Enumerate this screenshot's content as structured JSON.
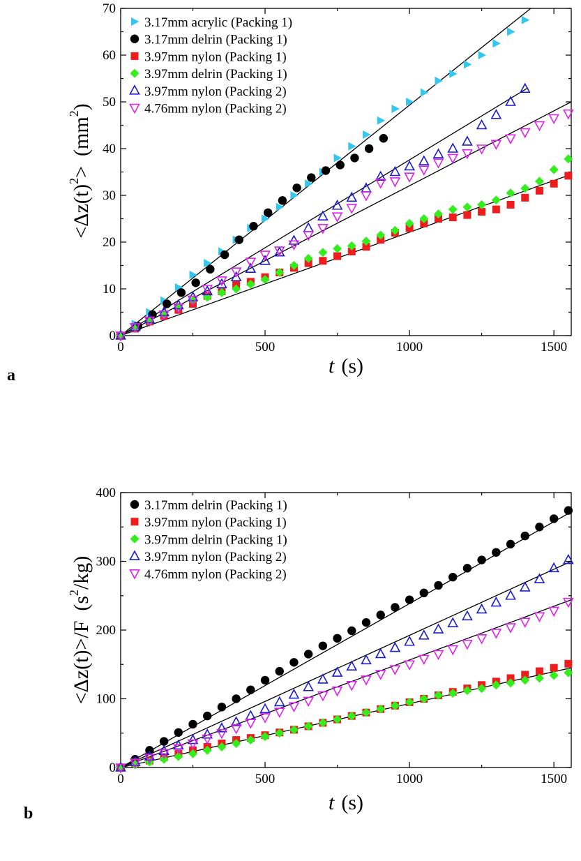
{
  "chart_data": [
    {
      "type": "scatter",
      "panel_label": "a",
      "title": "",
      "xlabel": {
        "main": "t",
        "unit": "(s)"
      },
      "ylabel": {
        "part1": "<Δz(t)",
        "sup": "2",
        "part2": ">",
        "unit": "(mm",
        "unitsup": "2",
        "unitclose": ")"
      },
      "xlim": [
        0,
        1560
      ],
      "ylim": [
        0,
        70
      ],
      "xticks": [
        0,
        500,
        1000,
        1500
      ],
      "yticks": [
        0,
        10,
        20,
        30,
        40,
        50,
        60,
        70
      ],
      "grid": false,
      "legend_position": "top-left",
      "series": [
        {
          "name": "3.17mm acrylic (Packing 1)",
          "marker": "triangle-right",
          "filled": true,
          "color": "#33c6ee",
          "x": [
            0,
            50,
            100,
            150,
            200,
            250,
            300,
            350,
            400,
            450,
            500,
            550,
            600,
            650,
            700,
            750,
            800,
            850,
            900,
            950,
            1000,
            1050,
            1100,
            1150,
            1200,
            1250,
            1300,
            1350,
            1400
          ],
          "y": [
            0,
            2.5,
            5,
            7.5,
            10.3,
            13,
            15.5,
            18,
            20.5,
            23,
            25,
            27.5,
            30,
            32.5,
            35,
            38,
            40.5,
            43,
            46,
            48.5,
            50,
            52,
            54.5,
            56,
            58,
            60,
            62.5,
            65,
            67.5
          ],
          "fit": [
            [
              0,
              0
            ],
            [
              1420,
              70
            ]
          ]
        },
        {
          "name": "3.17mm delrin (Packing 1)",
          "marker": "circle",
          "filled": true,
          "color": "#000000",
          "x": [
            0,
            60,
            110,
            160,
            210,
            260,
            310,
            360,
            410,
            460,
            510,
            560,
            610,
            660,
            710,
            760,
            810,
            860,
            910
          ],
          "y": [
            0,
            2,
            4.5,
            6.8,
            9.2,
            11.3,
            14.2,
            17.3,
            20.5,
            23.4,
            26.3,
            28.9,
            31.6,
            33.8,
            35.3,
            36.5,
            38,
            40,
            42.2
          ],
          "fit": null
        },
        {
          "name": "3.97mm nylon (Packing 1)",
          "marker": "square",
          "filled": true,
          "color": "#ee1c1c",
          "x": [
            0,
            50,
            100,
            150,
            200,
            250,
            300,
            350,
            400,
            450,
            500,
            550,
            600,
            650,
            700,
            750,
            800,
            850,
            900,
            950,
            1000,
            1050,
            1100,
            1150,
            1200,
            1250,
            1300,
            1350,
            1400,
            1450,
            1500,
            1550
          ],
          "y": [
            0,
            1.5,
            3,
            4.2,
            5.5,
            6.8,
            8.5,
            9.5,
            11,
            11.5,
            12.5,
            13.5,
            14.5,
            15.5,
            16,
            17,
            18,
            19,
            20.5,
            22,
            23,
            24,
            25,
            25.3,
            25.8,
            26.5,
            27,
            28,
            29.5,
            31,
            32.5,
            34.2
          ],
          "fit": null
        },
        {
          "name": "3.97mm delrin (Packing 1)",
          "marker": "diamond",
          "filled": true,
          "color": "#33ee1c",
          "x": [
            0,
            50,
            100,
            150,
            200,
            250,
            300,
            350,
            400,
            450,
            500,
            550,
            600,
            650,
            700,
            750,
            800,
            850,
            900,
            950,
            1000,
            1050,
            1100,
            1150,
            1200,
            1250,
            1300,
            1350,
            1400,
            1450,
            1500,
            1550
          ],
          "y": [
            0,
            1.5,
            3,
            4.5,
            6,
            7.5,
            8.2,
            9.2,
            10,
            11,
            12,
            13.5,
            15,
            16.5,
            17.8,
            18.6,
            19.2,
            20.2,
            21.5,
            22.5,
            24,
            25,
            26,
            27,
            27.5,
            28,
            29,
            30.5,
            31.5,
            33,
            35.5,
            37.8
          ],
          "fit": [
            [
              0,
              0
            ],
            [
              1560,
              34.5
            ]
          ]
        },
        {
          "name": "3.97mm nylon (Packing 2)",
          "marker": "triangle-up",
          "filled": false,
          "color": "#1c1ccc",
          "x": [
            0,
            50,
            100,
            150,
            200,
            250,
            300,
            350,
            400,
            450,
            500,
            550,
            600,
            650,
            700,
            750,
            800,
            850,
            900,
            950,
            1000,
            1050,
            1100,
            1150,
            1200,
            1250,
            1300,
            1350,
            1400
          ],
          "y": [
            0,
            1.8,
            3.5,
            5,
            6.5,
            8.2,
            9.5,
            11,
            12.5,
            14.3,
            16,
            17.8,
            20.3,
            23,
            25.5,
            27.8,
            29.5,
            31.5,
            34,
            35,
            36.2,
            37.3,
            38.8,
            40,
            41.5,
            45,
            47.2,
            50,
            52.8
          ],
          "fit": [
            [
              0,
              0
            ],
            [
              1410,
              53
            ]
          ]
        },
        {
          "name": "4.76mm nylon (Packing 2)",
          "marker": "triangle-down",
          "filled": false,
          "color": "#dd22ee",
          "x": [
            0,
            50,
            100,
            150,
            200,
            250,
            300,
            350,
            400,
            450,
            500,
            550,
            600,
            650,
            700,
            750,
            800,
            850,
            900,
            950,
            1000,
            1050,
            1100,
            1150,
            1200,
            1250,
            1300,
            1350,
            1400,
            1450,
            1500,
            1550
          ],
          "y": [
            0,
            1.8,
            3.2,
            4.5,
            6,
            7.7,
            10,
            11.8,
            13.7,
            15.8,
            17.3,
            18.2,
            19.5,
            21.5,
            23,
            25.5,
            27.3,
            30,
            32.7,
            33,
            34,
            35.5,
            37,
            38,
            39,
            40,
            41,
            42.2,
            43.5,
            45,
            46.5,
            47.5
          ],
          "fit": [
            [
              0,
              0
            ],
            [
              1560,
              50
            ]
          ]
        }
      ]
    },
    {
      "type": "scatter",
      "panel_label": "b",
      "title": "",
      "xlabel": {
        "main": "t",
        "unit": "(s)"
      },
      "ylabel": {
        "part1": "<Δz(t)>/F",
        "unit": "(s",
        "unitsup": "2",
        "unitclose": "/kg)"
      },
      "xlim": [
        0,
        1560
      ],
      "ylim": [
        0,
        400
      ],
      "xticks": [
        0,
        500,
        1000,
        1500
      ],
      "yticks": [
        0,
        100,
        200,
        300,
        400
      ],
      "grid": false,
      "legend_position": "top-left",
      "series": [
        {
          "name": "3.17mm delrin (Packing 1)",
          "marker": "circle",
          "filled": true,
          "color": "#000000",
          "x": [
            0,
            50,
            100,
            150,
            200,
            250,
            300,
            350,
            400,
            450,
            500,
            550,
            600,
            650,
            700,
            750,
            800,
            850,
            900,
            950,
            1000,
            1050,
            1100,
            1150,
            1200,
            1250,
            1300,
            1350,
            1400,
            1450,
            1500,
            1550
          ],
          "y": [
            0,
            12,
            25,
            38,
            51,
            63,
            75,
            88,
            100,
            113,
            127,
            140,
            153,
            165,
            177,
            188,
            199,
            211,
            222,
            233,
            244,
            254,
            265,
            277,
            290,
            302,
            313,
            325,
            337,
            350,
            362,
            374
          ],
          "fit": [
            [
              0,
              0
            ],
            [
              1560,
              372
            ]
          ]
        },
        {
          "name": "3.97mm nylon (Packing 1)",
          "marker": "square",
          "filled": true,
          "color": "#ee1c1c",
          "x": [
            0,
            50,
            100,
            150,
            200,
            250,
            300,
            350,
            400,
            450,
            500,
            550,
            600,
            650,
            700,
            750,
            800,
            850,
            900,
            950,
            1000,
            1050,
            1100,
            1150,
            1200,
            1250,
            1300,
            1350,
            1400,
            1450,
            1500,
            1550
          ],
          "y": [
            0,
            6,
            10,
            15,
            20,
            25,
            30,
            35,
            40,
            43,
            47,
            51,
            55,
            60,
            65,
            70,
            75,
            80,
            85,
            90,
            95,
            100,
            105,
            110,
            115,
            120,
            125,
            130,
            135,
            140,
            145,
            151
          ],
          "fit": [
            [
              0,
              0
            ],
            [
              1560,
              145
            ]
          ]
        },
        {
          "name": "3.97mm delrin (Packing 1)",
          "marker": "diamond",
          "filled": true,
          "color": "#33ee1c",
          "x": [
            0,
            50,
            100,
            150,
            200,
            250,
            300,
            350,
            400,
            450,
            500,
            550,
            600,
            650,
            700,
            750,
            800,
            850,
            900,
            950,
            1000,
            1050,
            1100,
            1150,
            1200,
            1250,
            1300,
            1350,
            1400,
            1450,
            1500,
            1550
          ],
          "y": [
            0,
            4,
            8,
            12,
            16,
            20,
            25,
            30,
            35,
            40,
            45,
            50,
            55,
            60,
            65,
            70,
            75,
            80,
            85,
            90,
            95,
            100,
            105,
            108,
            112,
            115,
            120,
            123,
            127,
            130,
            134,
            138
          ],
          "fit": null
        },
        {
          "name": "3.97mm nylon (Packing 2)",
          "marker": "triangle-up",
          "filled": false,
          "color": "#1c1ccc",
          "x": [
            0,
            50,
            100,
            150,
            200,
            250,
            300,
            350,
            400,
            450,
            500,
            550,
            600,
            650,
            700,
            750,
            800,
            850,
            900,
            950,
            1000,
            1050,
            1100,
            1150,
            1200,
            1250,
            1300,
            1350,
            1400,
            1450,
            1500,
            1550
          ],
          "y": [
            0,
            8,
            16,
            24,
            32,
            40,
            48,
            57,
            66,
            75,
            85,
            95,
            106,
            117,
            128,
            138,
            147,
            156,
            165,
            174,
            183,
            192,
            201,
            210,
            220,
            230,
            240,
            250,
            262,
            274,
            290,
            302
          ],
          "fit": [
            [
              0,
              0
            ],
            [
              1560,
              300
            ]
          ]
        },
        {
          "name": "4.76mm nylon (Packing 2)",
          "marker": "triangle-down",
          "filled": false,
          "color": "#dd22ee",
          "x": [
            0,
            50,
            100,
            150,
            200,
            250,
            300,
            350,
            400,
            450,
            500,
            550,
            600,
            650,
            700,
            750,
            800,
            850,
            900,
            950,
            1000,
            1050,
            1100,
            1150,
            1200,
            1250,
            1300,
            1350,
            1400,
            1450,
            1500,
            1550
          ],
          "y": [
            0,
            7,
            14,
            21,
            28,
            35,
            42,
            50,
            57,
            65,
            73,
            81,
            89,
            97,
            105,
            112,
            120,
            128,
            136,
            143,
            150,
            158,
            165,
            172,
            180,
            188,
            196,
            204,
            212,
            220,
            228,
            241
          ],
          "fit": [
            [
              0,
              0
            ],
            [
              1560,
              244
            ]
          ]
        }
      ]
    }
  ]
}
